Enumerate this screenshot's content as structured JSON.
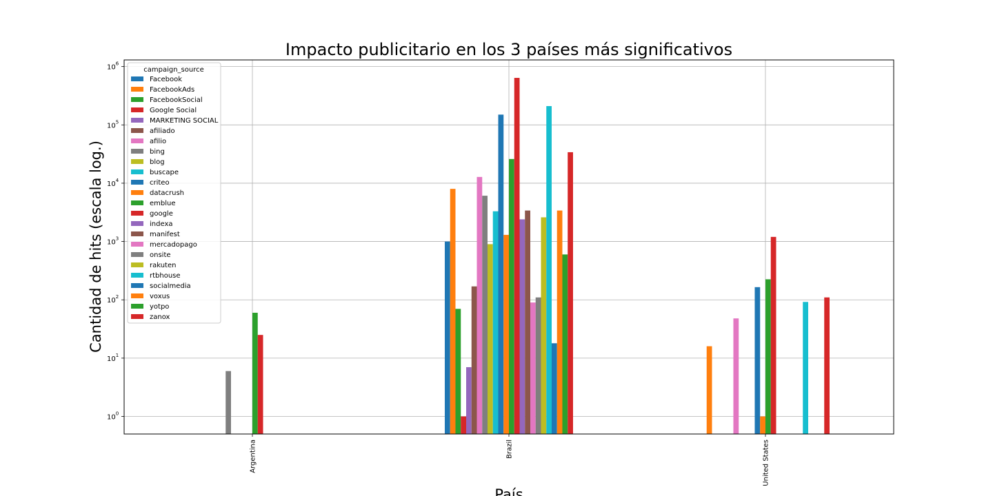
{
  "chart_data": {
    "type": "bar",
    "title": "Impacto publicitario en los 3 países más significativos",
    "xlabel": "País",
    "ylabel": "Cantidad de hits (escala log.)",
    "yscale": "log",
    "ylim": [
      0.5,
      1300000
    ],
    "y_ticks": [
      {
        "base": "10",
        "exp": "0"
      },
      {
        "base": "10",
        "exp": "1"
      },
      {
        "base": "10",
        "exp": "2"
      },
      {
        "base": "10",
        "exp": "3"
      },
      {
        "base": "10",
        "exp": "4"
      },
      {
        "base": "10",
        "exp": "5"
      },
      {
        "base": "10",
        "exp": "6"
      }
    ],
    "grid": true,
    "legend": {
      "title": "campaign_source",
      "placement": "top-left"
    },
    "categories": [
      "Argentina",
      "Brazil",
      "United States"
    ],
    "series": [
      {
        "name": "Facebook",
        "color": "#1f77b4",
        "values": [
          null,
          1000,
          null
        ]
      },
      {
        "name": "FacebookAds",
        "color": "#ff7f0e",
        "values": [
          null,
          8000,
          16
        ]
      },
      {
        "name": "FacebookSocial",
        "color": "#2ca02c",
        "values": [
          null,
          70,
          null
        ]
      },
      {
        "name": "Google Social",
        "color": "#d62728",
        "values": [
          null,
          1,
          null
        ]
      },
      {
        "name": "MARKETING SOCIAL",
        "color": "#9467bd",
        "values": [
          null,
          7,
          null
        ]
      },
      {
        "name": "afiliado",
        "color": "#8c564b",
        "values": [
          null,
          170,
          null
        ]
      },
      {
        "name": "afilio",
        "color": "#e377c2",
        "values": [
          null,
          12800,
          48
        ]
      },
      {
        "name": "bing",
        "color": "#7f7f7f",
        "values": [
          6,
          6100,
          null
        ]
      },
      {
        "name": "blog",
        "color": "#bcbd22",
        "values": [
          null,
          900,
          null
        ]
      },
      {
        "name": "buscape",
        "color": "#17becf",
        "values": [
          null,
          3300,
          null
        ]
      },
      {
        "name": "criteo",
        "color": "#1f77b4",
        "values": [
          null,
          150000,
          165
        ]
      },
      {
        "name": "datacrush",
        "color": "#ff7f0e",
        "values": [
          null,
          1300,
          1
        ]
      },
      {
        "name": "emblue",
        "color": "#2ca02c",
        "values": [
          60,
          26000,
          225
        ]
      },
      {
        "name": "google",
        "color": "#d62728",
        "values": [
          25,
          640000,
          1200
        ]
      },
      {
        "name": "indexa",
        "color": "#9467bd",
        "values": [
          null,
          2400,
          null
        ]
      },
      {
        "name": "manifest",
        "color": "#8c564b",
        "values": [
          null,
          3400,
          null
        ]
      },
      {
        "name": "mercadopago",
        "color": "#e377c2",
        "values": [
          null,
          90,
          null
        ]
      },
      {
        "name": "onsite",
        "color": "#7f7f7f",
        "values": [
          null,
          110,
          null
        ]
      },
      {
        "name": "rakuten",
        "color": "#bcbd22",
        "values": [
          null,
          2600,
          null
        ]
      },
      {
        "name": "rtbhouse",
        "color": "#17becf",
        "values": [
          null,
          210000,
          92
        ]
      },
      {
        "name": "socialmedia",
        "color": "#1f77b4",
        "values": [
          null,
          18,
          null
        ]
      },
      {
        "name": "voxus",
        "color": "#ff7f0e",
        "values": [
          null,
          3400,
          null
        ]
      },
      {
        "name": "yotpo",
        "color": "#2ca02c",
        "values": [
          null,
          600,
          null
        ]
      },
      {
        "name": "zanox",
        "color": "#d62728",
        "values": [
          null,
          34000,
          110
        ]
      }
    ]
  }
}
